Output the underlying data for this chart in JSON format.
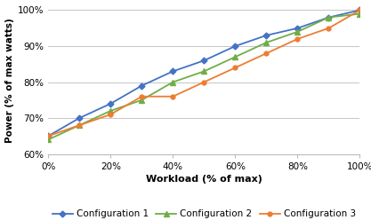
{
  "x": [
    0,
    10,
    20,
    30,
    40,
    50,
    60,
    70,
    80,
    90,
    100
  ],
  "config1": [
    65,
    70,
    74,
    79,
    83,
    86,
    90,
    93,
    95,
    98,
    100
  ],
  "config2": [
    64,
    68,
    72,
    75,
    80,
    83,
    87,
    91,
    94,
    98,
    99
  ],
  "config3": [
    65,
    68,
    71,
    76,
    76,
    80,
    84,
    88,
    92,
    95,
    100
  ],
  "color1": "#4472C4",
  "color2": "#70AD47",
  "color3": "#ED7D31",
  "xlabel": "Workload (% of max)",
  "ylabel": "Power (% of max watts)",
  "legend": [
    "Configuration 1",
    "Configuration 2",
    "Configuration 3"
  ],
  "ylim": [
    60,
    101
  ],
  "xlim": [
    0,
    100
  ],
  "yticks": [
    60,
    70,
    80,
    90,
    100
  ],
  "xticks": [
    0,
    20,
    40,
    60,
    80,
    100
  ]
}
